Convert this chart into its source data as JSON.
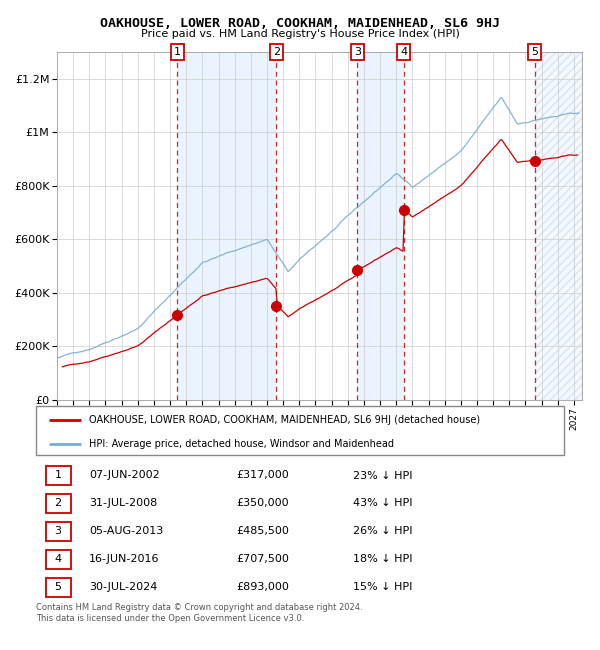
{
  "title": "OAKHOUSE, LOWER ROAD, COOKHAM, MAIDENHEAD, SL6 9HJ",
  "subtitle": "Price paid vs. HM Land Registry's House Price Index (HPI)",
  "transactions": [
    {
      "num": 1,
      "date": "07-JUN-2002",
      "year": 2002.44,
      "price": 317000,
      "pct": "23%"
    },
    {
      "num": 2,
      "date": "31-JUL-2008",
      "year": 2008.58,
      "price": 350000,
      "pct": "43%"
    },
    {
      "num": 3,
      "date": "05-AUG-2013",
      "year": 2013.59,
      "price": 485500,
      "pct": "26%"
    },
    {
      "num": 4,
      "date": "16-JUN-2016",
      "year": 2016.46,
      "price": 707500,
      "pct": "18%"
    },
    {
      "num": 5,
      "date": "30-JUL-2024",
      "year": 2024.58,
      "price": 893000,
      "pct": "15%"
    }
  ],
  "legend_label1": "OAKHOUSE, LOWER ROAD, COOKHAM, MAIDENHEAD, SL6 9HJ (detached house)",
  "legend_label2": "HPI: Average price, detached house, Windsor and Maidenhead",
  "footer1": "Contains HM Land Registry data © Crown copyright and database right 2024.",
  "footer2": "This data is licensed under the Open Government Licence v3.0.",
  "red_color": "#cc0000",
  "blue_color": "#7aadcf",
  "bg_shade_color": "#ddeeff",
  "ylim": [
    0,
    1300000
  ],
  "xlim_start": 1995.0,
  "xlim_end": 2027.5,
  "yticks": [
    0,
    200000,
    400000,
    600000,
    800000,
    1000000,
    1200000
  ],
  "ytick_labels": [
    "£0",
    "£200K",
    "£400K",
    "£600K",
    "£800K",
    "£1M",
    "£1.2M"
  ]
}
